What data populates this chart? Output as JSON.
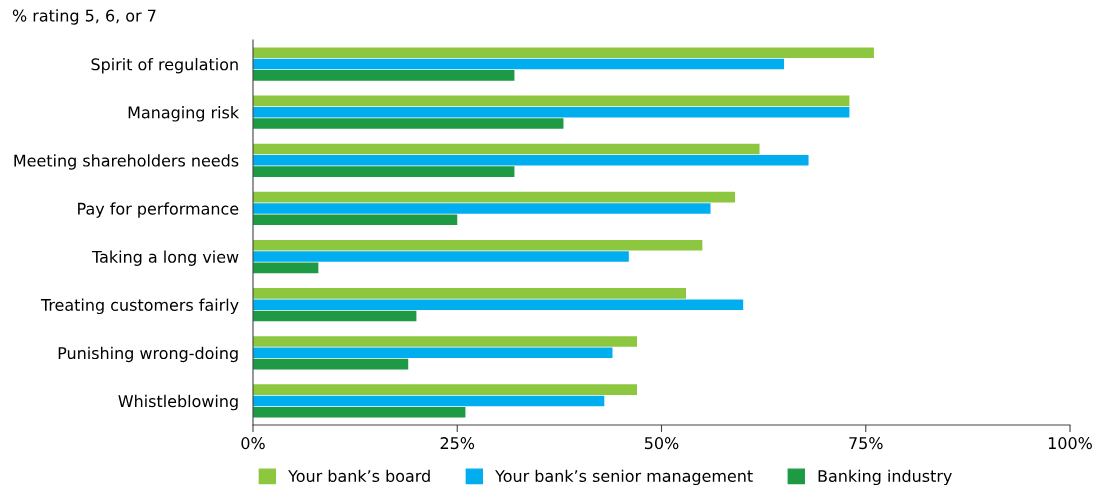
{
  "chart_data": {
    "type": "bar",
    "orientation": "horizontal",
    "title": "% rating 5, 6, or 7",
    "categories": [
      "Spirit of regulation",
      "Managing risk",
      "Meeting shareholders needs",
      "Pay for performance",
      "Taking a long view",
      "Treating customers fairly",
      "Punishing wrong-doing",
      "Whistleblowing"
    ],
    "series": [
      {
        "name": "Your bank’s board",
        "color": "#8dc63f",
        "values": [
          76,
          73,
          62,
          59,
          55,
          53,
          47,
          47
        ]
      },
      {
        "name": "Your bank’s senior management",
        "color": "#00aeef",
        "values": [
          65,
          73,
          68,
          56,
          46,
          60,
          44,
          43
        ]
      },
      {
        "name": "Banking industry",
        "color": "#1e9a45",
        "values": [
          32,
          38,
          32,
          25,
          8,
          20,
          19,
          26
        ]
      }
    ],
    "xlim": [
      0,
      100
    ],
    "xticks": [
      {
        "value": 0,
        "label": "0%"
      },
      {
        "value": 25,
        "label": "25%"
      },
      {
        "value": 50,
        "label": "50%"
      },
      {
        "value": 75,
        "label": "75%"
      },
      {
        "value": 100,
        "label": "100%"
      }
    ],
    "grid": false,
    "legend": "bottom"
  }
}
